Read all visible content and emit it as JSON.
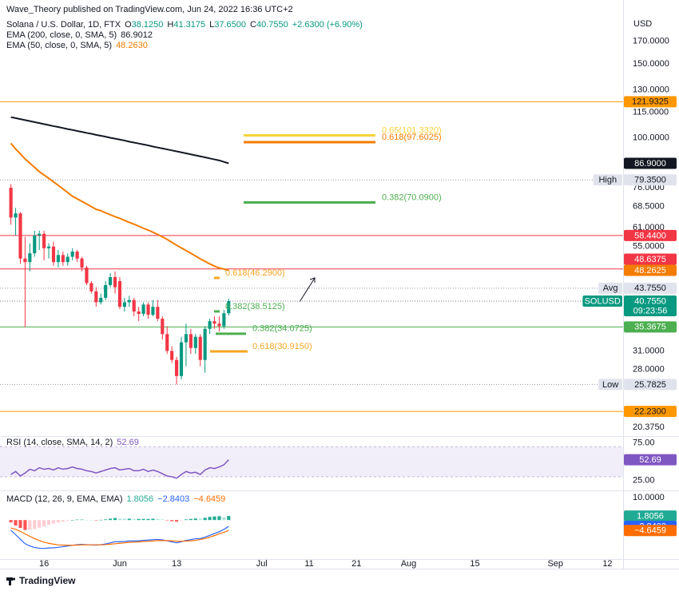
{
  "header": {
    "publisher": "Wave_Theory published on TradingView.com, Jun 24, 2022 16:36 UTC+2"
  },
  "footer": {
    "brand": "TradingView"
  },
  "chart_data": [
    {
      "type": "candlestick",
      "title": "Solana / U.S. Dollar, 1D, FTX",
      "currency": "USD",
      "legend": {
        "ohlc": [
          {
            "key": "O",
            "text": "38.1250"
          },
          {
            "key": "H",
            "text": "41.3175"
          },
          {
            "key": "L",
            "text": "37.6500"
          },
          {
            "key": "C",
            "text": "40.7550"
          }
        ],
        "change": "+2.6300 (+6.90%)",
        "value_color": "#089981"
      },
      "up_color": "#089981",
      "down_color": "#f23645",
      "open": [
        76.0,
        64.5,
        66.0,
        51.5,
        50.5,
        53.0,
        58.5,
        59.0,
        54.5,
        55.0,
        50.5,
        52.5,
        50.5,
        52.0,
        53.5,
        51.5,
        49.0,
        45.0,
        43.0,
        40.5,
        41.5,
        44.5,
        46.5,
        45.5,
        39.5,
        40.5,
        41.0,
        38.5,
        38.0,
        40.0,
        37.8,
        39.5,
        37.0,
        34.0,
        31.0,
        29.5,
        27.0,
        32.5,
        34.0,
        31.5,
        33.5,
        29.5,
        35.0,
        36.5,
        36.0,
        35.5,
        38.125
      ],
      "high": [
        77.5,
        68.0,
        66.5,
        58.0,
        56.0,
        60.0,
        60.0,
        60.0,
        56.0,
        56.5,
        54.0,
        53.5,
        53.0,
        54.5,
        54.0,
        52.0,
        49.5,
        45.5,
        44.0,
        42.5,
        45.5,
        47.5,
        48.0,
        46.5,
        41.5,
        42.0,
        41.5,
        39.5,
        40.5,
        40.5,
        41.0,
        41.0,
        37.5,
        35.5,
        31.8,
        30.0,
        33.5,
        36.0,
        35.0,
        34.0,
        34.0,
        35.5,
        37.0,
        37.5,
        37.5,
        38.8,
        41.3175
      ],
      "low": [
        62.0,
        58.5,
        50.0,
        35.3,
        48.0,
        52.0,
        54.0,
        51.0,
        51.5,
        49.5,
        49.0,
        49.5,
        49.5,
        51.0,
        50.5,
        48.0,
        44.5,
        42.5,
        39.5,
        40.0,
        41.0,
        44.0,
        42.5,
        39.0,
        38.5,
        39.5,
        37.5,
        36.5,
        37.5,
        37.0,
        37.5,
        36.5,
        33.0,
        30.5,
        29.0,
        25.7825,
        26.5,
        28.5,
        30.5,
        30.5,
        28.5,
        27.5,
        34.0,
        35.0,
        34.5,
        35.0,
        37.65
      ],
      "close": [
        64.5,
        66.0,
        51.5,
        50.5,
        53.0,
        58.5,
        59.0,
        54.5,
        55.0,
        50.5,
        52.5,
        50.5,
        52.0,
        53.5,
        51.5,
        49.0,
        45.0,
        43.0,
        40.5,
        41.5,
        44.5,
        46.5,
        44.0,
        39.5,
        40.5,
        41.0,
        38.5,
        38.0,
        40.0,
        37.8,
        39.5,
        37.0,
        34.0,
        31.0,
        29.5,
        27.0,
        32.5,
        34.0,
        31.5,
        33.5,
        29.5,
        35.0,
        36.5,
        36.0,
        35.5,
        38.125,
        40.755
      ],
      "studies": [
        {
          "name": "EMA (200, close, 0, SMA, 5)",
          "value_text": "86.9012",
          "color": "#131722",
          "values": [
            112.0,
            111.4,
            110.8,
            110.2,
            109.6,
            109.0,
            108.4,
            107.8,
            107.2,
            106.6,
            106.1,
            105.5,
            104.9,
            104.4,
            103.8,
            103.3,
            102.7,
            102.2,
            101.6,
            101.1,
            100.6,
            100.0,
            99.5,
            99.0,
            98.5,
            97.9,
            97.4,
            96.9,
            96.4,
            95.9,
            95.3,
            94.8,
            94.3,
            93.8,
            93.3,
            92.8,
            92.3,
            91.8,
            91.3,
            90.8,
            90.3,
            89.8,
            89.3,
            88.8,
            88.3,
            87.6,
            86.9012
          ]
        },
        {
          "name": "EMA (50, close, 0, SMA, 5)",
          "value_text": "48.2630",
          "color": "#f57c00",
          "values": [
            97,
            94,
            91.5,
            89,
            87,
            85,
            83,
            81.5,
            80,
            78.5,
            77,
            75.5,
            74,
            72.5,
            71.5,
            70.5,
            69.5,
            68.5,
            67.5,
            67,
            66.2,
            65.5,
            64.8,
            64.2,
            63.5,
            62.8,
            62.2,
            61.5,
            60.8,
            60.2,
            59.5,
            58.8,
            58,
            57.2,
            56.3,
            55.4,
            54.6,
            53.8,
            53,
            52.2,
            51.4,
            50.7,
            50,
            49.4,
            48.9,
            48.6,
            48.263
          ]
        }
      ],
      "log_scale": true,
      "ylim": [
        19.5,
        197
      ],
      "yticks": [
        {
          "value": 170,
          "label": "170.0000"
        },
        {
          "value": 150,
          "label": "150.0000"
        },
        {
          "value": 130,
          "label": "130.0000"
        },
        {
          "value": 115,
          "label": "115.0000"
        },
        {
          "value": 100,
          "label": "100.0000"
        },
        {
          "value": 76,
          "label": "76.0000"
        },
        {
          "value": 68.5,
          "label": "68.5000"
        },
        {
          "value": 61,
          "label": "61.0000"
        },
        {
          "value": 55,
          "label": "55.0000"
        },
        {
          "value": 31,
          "label": "31.0000"
        },
        {
          "value": 28,
          "label": "28.0000"
        },
        {
          "value": 20.375,
          "label": "20.3750"
        }
      ],
      "xlim": [
        -2.3,
        129.3
      ],
      "xticks": [
        {
          "value": 7,
          "label": "16"
        },
        {
          "value": 23,
          "label": "Jun"
        },
        {
          "value": 35,
          "label": "13"
        },
        {
          "value": 53,
          "label": "Jul"
        },
        {
          "value": 63,
          "label": "11"
        },
        {
          "value": 73,
          "label": "21"
        },
        {
          "value": 84,
          "label": "Aug"
        },
        {
          "value": 98,
          "label": "15"
        },
        {
          "value": 115,
          "label": "Sep"
        },
        {
          "value": 126,
          "label": "12"
        }
      ],
      "levels": [
        {
          "value": 121.9325,
          "label": "121.9325",
          "line": "solid",
          "color": "#ff9800",
          "background": "#ff9800",
          "text_color": "#131722"
        },
        {
          "value": 86.9,
          "label": "86.9000",
          "line": "none",
          "color": "#131722",
          "background": "#131722",
          "text_color": "#ffffff"
        },
        {
          "value": 79.35,
          "label": "79.3500",
          "tag": "High",
          "line": "dotted",
          "color": "#9598a1",
          "background": "#e0e3eb",
          "text_color": "#131722"
        },
        {
          "value": 58.44,
          "label": "58.4400",
          "line": "solid",
          "color": "#f23645",
          "background": "#f23645",
          "text_color": "#ffffff"
        },
        {
          "value": 48.6375,
          "label": "48.6375",
          "line": "solid",
          "color": "#f23645",
          "background": "#f23645",
          "text_color": "#ffffff"
        },
        {
          "value": 48.2625,
          "label": "48.2625",
          "line": "none",
          "color": "#f57c00",
          "background": "#f57c00",
          "text_color": "#ffffff"
        },
        {
          "value": 43.755,
          "label": "43.7550",
          "tag": "Avg",
          "line": "dotted",
          "color": "#9598a1",
          "background": "#e0e3eb",
          "text_color": "#131722"
        },
        {
          "value": 40.755,
          "label": "40.7550",
          "tag": "SOLUSD",
          "time": "09:23:56",
          "line": "dotted",
          "color": "#787b86",
          "background": "#089981",
          "text_color": "#ffffff"
        },
        {
          "value": 35.3675,
          "label": "35.3675",
          "line": "solid",
          "color": "#4caf50",
          "background": "#4caf50",
          "text_color": "#ffffff"
        },
        {
          "value": 25.7825,
          "label": "25.7825",
          "tag": "Low",
          "line": "dotted",
          "color": "#9598a1",
          "background": "#e0e3eb",
          "text_color": "#131722"
        },
        {
          "value": 22.23,
          "label": "22.2300",
          "line": "solid",
          "color": "#ff9800",
          "background": "#ff9800",
          "text_color": "#131722"
        }
      ],
      "fibs": [
        {
          "value": 101.332,
          "label": "0.65(101.3320)",
          "color": "#f7d23a"
        },
        {
          "value": 97.6025,
          "label": "0.618(97.6025)",
          "color": "#f57c00"
        },
        {
          "value": 70.09,
          "label": "0.382(70.0900)",
          "color": "#4caf50"
        },
        {
          "value": 46.29,
          "label": "0.618(46.2900)",
          "color": "#f5a623"
        },
        {
          "value": 38.5125,
          "label": "0.382(38.5125)",
          "color": "#4caf50"
        },
        {
          "value": 34.0725,
          "label": "0.382(34.0725)",
          "color": "#4caf50"
        },
        {
          "value": 30.915,
          "label": "0.618(30.9150)",
          "color": "#f5a623"
        }
      ]
    },
    {
      "type": "line",
      "legend": {
        "title": "RSI (14, close, SMA, 14, 2)",
        "values": [
          "52.69"
        ]
      },
      "series": [
        {
          "color": "#7e57c2",
          "values": [
            33,
            37,
            31,
            35,
            40,
            38,
            42,
            40,
            41,
            39,
            42,
            40,
            41,
            43,
            41,
            40,
            38,
            37,
            35,
            37,
            39,
            41,
            42,
            39,
            40,
            41,
            38,
            38,
            40,
            37,
            39,
            37,
            34,
            31,
            30,
            28,
            33,
            37,
            35,
            36,
            33,
            39,
            42,
            41,
            43,
            46,
            52.69
          ]
        }
      ],
      "band": [
        30,
        70
      ],
      "ylim": [
        15,
        80
      ],
      "yticks": [
        {
          "value": 75,
          "label": "75.00"
        },
        {
          "value": 25,
          "label": "25.00"
        }
      ]
    },
    {
      "type": "macd",
      "legend": {
        "title": "MACD (12, 26, 9, EMA, EMA)",
        "values": [
          "1.8056",
          "−2.8403",
          "−4.6459"
        ]
      },
      "series": [
        {
          "style": "histogram",
          "color": "#22ab94",
          "colors": [
            "#22ab94",
            "#ace5dc",
            "#ff5252",
            "#ffcdd2"
          ],
          "values": [
            -1.0,
            -2.4,
            -3.5,
            -4.4,
            -4.3,
            -4.0,
            -3.4,
            -2.8,
            -2.1,
            -1.6,
            -1.1,
            -0.7,
            -0.3,
            0.0,
            0.2,
            0.2,
            0.1,
            0.0,
            -0.1,
            0.1,
            0.3,
            0.6,
            0.9,
            0.7,
            0.6,
            0.6,
            0.5,
            0.5,
            0.5,
            0.5,
            0.6,
            0.5,
            0.3,
            -0.1,
            -0.5,
            -0.7,
            -0.2,
            0.3,
            0.5,
            0.7,
            0.6,
            1.0,
            1.4,
            1.6,
            1.7,
            1.3,
            1.8056
          ]
        },
        {
          "style": "line",
          "color": "#2962ff",
          "values": [
            -4.5,
            -6.5,
            -8.5,
            -10.5,
            -11.5,
            -12.2,
            -12.5,
            -12.6,
            -12.4,
            -12.3,
            -12.1,
            -11.8,
            -11.5,
            -11.2,
            -10.9,
            -10.8,
            -10.9,
            -11.0,
            -11.1,
            -10.9,
            -10.6,
            -10.1,
            -9.6,
            -9.6,
            -9.5,
            -9.3,
            -9.3,
            -9.2,
            -9.0,
            -8.9,
            -8.7,
            -8.6,
            -8.8,
            -9.2,
            -9.7,
            -10.1,
            -9.6,
            -9.0,
            -8.7,
            -8.3,
            -8.2,
            -7.6,
            -6.8,
            -6.0,
            -5.2,
            -4.1,
            -2.8403
          ]
        },
        {
          "style": "line",
          "color": "#ff6d00",
          "values": [
            -3.5,
            -4.1,
            -5.0,
            -6.1,
            -7.2,
            -8.2,
            -9.1,
            -9.8,
            -10.3,
            -10.7,
            -11.0,
            -11.1,
            -11.2,
            -11.2,
            -11.1,
            -11.0,
            -11.0,
            -11.0,
            -11.0,
            -11.0,
            -10.9,
            -10.7,
            -10.5,
            -10.3,
            -10.1,
            -9.9,
            -9.8,
            -9.7,
            -9.5,
            -9.4,
            -9.3,
            -9.1,
            -9.1,
            -9.1,
            -9.2,
            -9.4,
            -9.4,
            -9.3,
            -9.2,
            -9.0,
            -8.6,
            -8.2,
            -7.6,
            -6.9,
            -6.1,
            -5.4,
            -4.6459
          ]
        }
      ],
      "ylim": [
        -16.6,
        11.4
      ],
      "yticks": [
        {
          "value": 10,
          "label": "10.0000"
        }
      ]
    }
  ]
}
